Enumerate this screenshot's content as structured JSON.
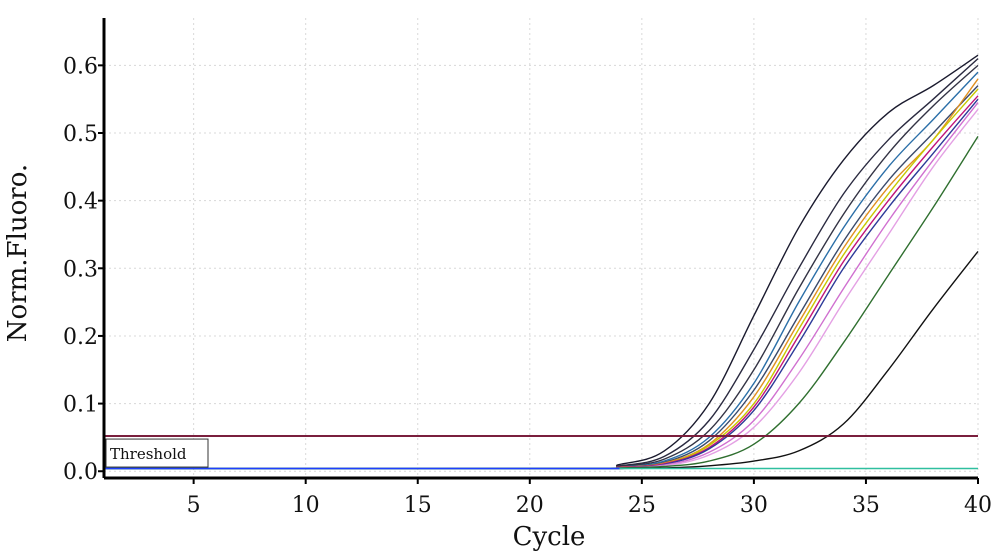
{
  "chart_data": {
    "type": "line",
    "xlabel": "Cycle",
    "ylabel": "Norm.Fluoro.",
    "xlim": [
      1,
      40
    ],
    "ylim": [
      -0.01,
      0.67
    ],
    "xticks": [
      5,
      10,
      15,
      20,
      25,
      30,
      35,
      40
    ],
    "yticks": [
      0.0,
      0.1,
      0.2,
      0.3,
      0.4,
      0.5,
      0.6
    ],
    "ytick_labels": [
      "0.0",
      "0.1",
      "0.2",
      "0.3",
      "0.4",
      "0.5",
      "0.6"
    ],
    "grid": true,
    "threshold": {
      "label": "Threshold",
      "value": 0.052,
      "color": "#7a1f3d"
    },
    "series": [
      {
        "color": "#1a1a2e",
        "points": [
          [
            1,
            0.004
          ],
          [
            22,
            0.004
          ],
          [
            24,
            0.01
          ],
          [
            26,
            0.03
          ],
          [
            28,
            0.1
          ],
          [
            30,
            0.23
          ],
          [
            32,
            0.36
          ],
          [
            34,
            0.46
          ],
          [
            36,
            0.53
          ],
          [
            38,
            0.57
          ],
          [
            40,
            0.615
          ]
        ]
      },
      {
        "color": "#2a2a40",
        "points": [
          [
            1,
            0.004
          ],
          [
            22,
            0.004
          ],
          [
            24,
            0.008
          ],
          [
            26,
            0.022
          ],
          [
            28,
            0.075
          ],
          [
            30,
            0.18
          ],
          [
            32,
            0.3
          ],
          [
            34,
            0.41
          ],
          [
            36,
            0.49
          ],
          [
            38,
            0.55
          ],
          [
            40,
            0.61
          ]
        ]
      },
      {
        "color": "#333344",
        "points": [
          [
            1,
            0.004
          ],
          [
            22,
            0.004
          ],
          [
            24,
            0.007
          ],
          [
            26,
            0.018
          ],
          [
            28,
            0.06
          ],
          [
            30,
            0.15
          ],
          [
            32,
            0.27
          ],
          [
            34,
            0.38
          ],
          [
            36,
            0.47
          ],
          [
            38,
            0.54
          ],
          [
            40,
            0.6
          ]
        ]
      },
      {
        "color": "#2b6fa8",
        "points": [
          [
            1,
            0.004
          ],
          [
            22,
            0.004
          ],
          [
            24,
            0.006
          ],
          [
            26,
            0.015
          ],
          [
            28,
            0.05
          ],
          [
            30,
            0.13
          ],
          [
            32,
            0.25
          ],
          [
            34,
            0.36
          ],
          [
            36,
            0.45
          ],
          [
            38,
            0.52
          ],
          [
            40,
            0.59
          ]
        ]
      },
      {
        "color": "#3b4a6b",
        "points": [
          [
            1,
            0.004
          ],
          [
            22,
            0.004
          ],
          [
            24,
            0.006
          ],
          [
            26,
            0.013
          ],
          [
            28,
            0.045
          ],
          [
            30,
            0.12
          ],
          [
            32,
            0.23
          ],
          [
            34,
            0.34
          ],
          [
            36,
            0.43
          ],
          [
            38,
            0.5
          ],
          [
            40,
            0.57
          ]
        ]
      },
      {
        "color": "#e09020",
        "points": [
          [
            1,
            0.004
          ],
          [
            22,
            0.004
          ],
          [
            24,
            0.006
          ],
          [
            26,
            0.012
          ],
          [
            28,
            0.04
          ],
          [
            30,
            0.11
          ],
          [
            32,
            0.22
          ],
          [
            34,
            0.33
          ],
          [
            36,
            0.42
          ],
          [
            38,
            0.49
          ],
          [
            40,
            0.58
          ]
        ]
      },
      {
        "color": "#c8c800",
        "points": [
          [
            1,
            0.004
          ],
          [
            22,
            0.004
          ],
          [
            24,
            0.006
          ],
          [
            26,
            0.011
          ],
          [
            28,
            0.038
          ],
          [
            30,
            0.1
          ],
          [
            32,
            0.21
          ],
          [
            34,
            0.32
          ],
          [
            36,
            0.41
          ],
          [
            38,
            0.49
          ],
          [
            40,
            0.565
          ]
        ]
      },
      {
        "color": "#c0157a",
        "points": [
          [
            1,
            0.004
          ],
          [
            22,
            0.004
          ],
          [
            24,
            0.006
          ],
          [
            26,
            0.011
          ],
          [
            28,
            0.035
          ],
          [
            30,
            0.095
          ],
          [
            32,
            0.2
          ],
          [
            34,
            0.31
          ],
          [
            36,
            0.4
          ],
          [
            38,
            0.48
          ],
          [
            40,
            0.555
          ]
        ]
      },
      {
        "color": "#2d3a99",
        "points": [
          [
            1,
            0.004
          ],
          [
            22,
            0.004
          ],
          [
            24,
            0.005
          ],
          [
            26,
            0.01
          ],
          [
            28,
            0.033
          ],
          [
            30,
            0.09
          ],
          [
            32,
            0.19
          ],
          [
            34,
            0.3
          ],
          [
            36,
            0.39
          ],
          [
            38,
            0.47
          ],
          [
            40,
            0.55
          ]
        ]
      },
      {
        "color": "#d070d0",
        "points": [
          [
            1,
            0.004
          ],
          [
            22,
            0.004
          ],
          [
            24,
            0.005
          ],
          [
            26,
            0.009
          ],
          [
            28,
            0.028
          ],
          [
            30,
            0.075
          ],
          [
            32,
            0.165
          ],
          [
            34,
            0.27
          ],
          [
            36,
            0.37
          ],
          [
            38,
            0.46
          ],
          [
            40,
            0.545
          ]
        ]
      },
      {
        "color": "#e4a0e4",
        "points": [
          [
            1,
            0.004
          ],
          [
            22,
            0.004
          ],
          [
            24,
            0.005
          ],
          [
            26,
            0.008
          ],
          [
            28,
            0.024
          ],
          [
            30,
            0.065
          ],
          [
            32,
            0.145
          ],
          [
            34,
            0.25
          ],
          [
            36,
            0.35
          ],
          [
            38,
            0.45
          ],
          [
            40,
            0.535
          ]
        ]
      },
      {
        "color": "#2f6f2f",
        "points": [
          [
            1,
            0.004
          ],
          [
            22,
            0.004
          ],
          [
            24,
            0.005
          ],
          [
            26,
            0.007
          ],
          [
            28,
            0.015
          ],
          [
            30,
            0.04
          ],
          [
            32,
            0.1
          ],
          [
            34,
            0.19
          ],
          [
            36,
            0.29
          ],
          [
            38,
            0.39
          ],
          [
            40,
            0.495
          ]
        ]
      },
      {
        "color": "#111111",
        "points": [
          [
            1,
            0.004
          ],
          [
            22,
            0.004
          ],
          [
            26,
            0.005
          ],
          [
            28,
            0.008
          ],
          [
            30,
            0.015
          ],
          [
            32,
            0.03
          ],
          [
            34,
            0.07
          ],
          [
            36,
            0.15
          ],
          [
            38,
            0.24
          ],
          [
            40,
            0.325
          ]
        ]
      },
      {
        "color": "#2fbf9f",
        "points": [
          [
            1,
            0.004
          ],
          [
            40,
            0.004
          ]
        ]
      },
      {
        "color": "#1f3fff",
        "points": [
          [
            1,
            0.004
          ],
          [
            24,
            0.004
          ]
        ]
      }
    ]
  }
}
